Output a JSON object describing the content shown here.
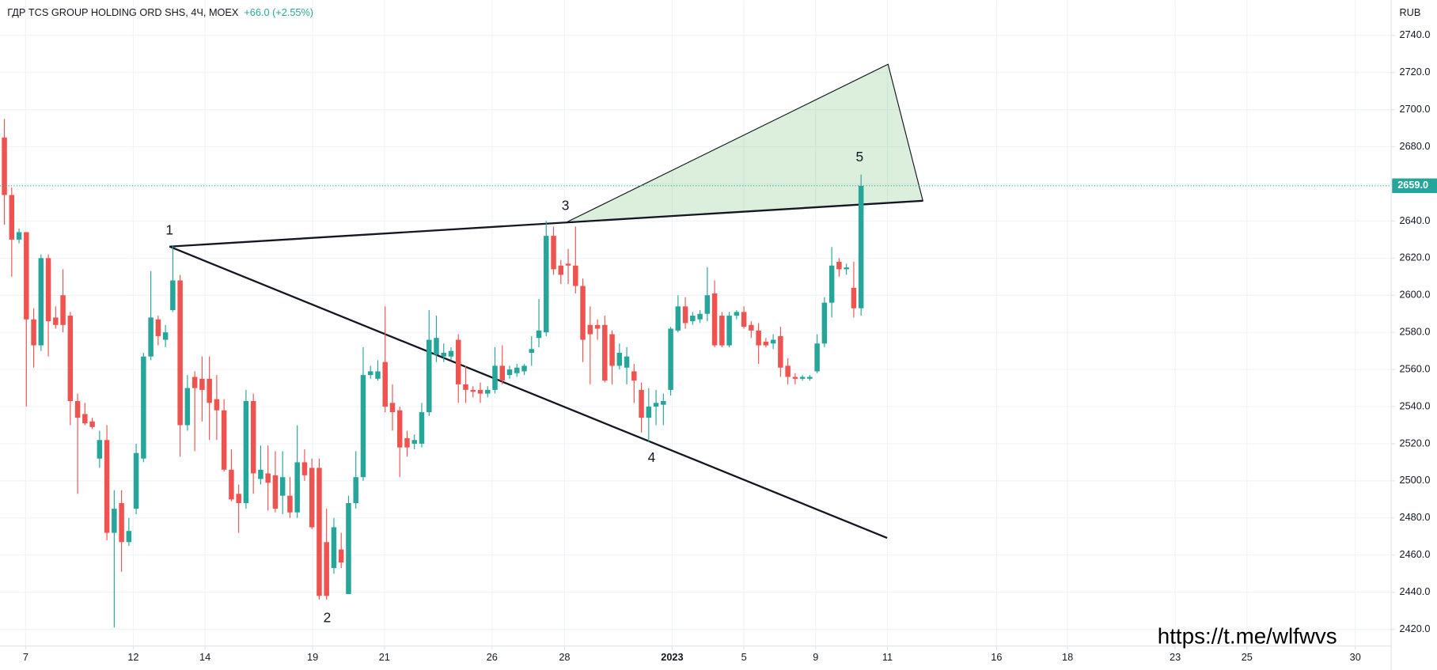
{
  "chart_data": {
    "type": "candlestick",
    "title": "ГДР TCS GROUP HOLDING ORD SHS, 4Ч, MOEX",
    "change": "+66.0 (+2.55%)",
    "currency": "RUB",
    "watermark": "https://t.me/wlfwvs",
    "annotations": [
      "1",
      "2",
      "3",
      "4",
      "5"
    ],
    "up_color": "#26a69a",
    "down_color": "#ef5350",
    "last_price": {
      "value": 2659,
      "label": "2659.0"
    },
    "open": [
      2685,
      2654,
      2630,
      2634,
      2587,
      2573,
      2620,
      2588,
      2600,
      2589,
      2543,
      2536,
      2532,
      2512,
      2522,
      2472,
      2488,
      2467,
      2485,
      2512,
      2567,
      2587,
      2576,
      2592,
      2608,
      2530,
      2556,
      2555,
      2555,
      2544,
      2538,
      2506,
      2493,
      2488,
      2543,
      2501,
      2504,
      2503,
      2492,
      2492,
      2483,
      2510,
      2507,
      2507,
      2467,
      2453,
      2463,
      2439,
      2488,
      2502,
      2557,
      2555,
      2564,
      2542,
      2538,
      2523,
      2520,
      2520,
      2537,
      2568,
      2567,
      2567,
      2576,
      2552,
      2549,
      2549,
      2547,
      2549,
      2562,
      2557,
      2558,
      2559,
      2569,
      2577,
      2580,
      2632,
      2616,
      2617,
      2616,
      2605,
      2584,
      2584,
      2584,
      2579,
      2562,
      2561,
      2559,
      2549,
      2534,
      2540,
      2541,
      2549,
      2581,
      2594,
      2586,
      2587,
      2590,
      2601,
      2589,
      2573,
      2589,
      2591,
      2584,
      2581,
      2575,
      2574,
      2578,
      2562,
      2556,
      2555,
      2555,
      2559,
      2574,
      2596,
      2618,
      2614,
      2604,
      2593
    ],
    "high": [
      2695,
      2658,
      2636,
      2634,
      2593,
      2622,
      2622,
      2594,
      2614,
      2591,
      2547,
      2542,
      2534,
      2527,
      2530,
      2495,
      2495,
      2480,
      2520,
      2569,
      2613,
      2589,
      2584,
      2627,
      2611,
      2557,
      2559,
      2567,
      2567,
      2557,
      2544,
      2517,
      2498,
      2549,
      2547,
      2519,
      2519,
      2516,
      2516,
      2502,
      2530,
      2517,
      2512,
      2512,
      2485,
      2480,
      2472,
      2492,
      2516,
      2572,
      2562,
      2565,
      2594,
      2552,
      2540,
      2527,
      2525,
      2542,
      2592,
      2589,
      2574,
      2572,
      2579,
      2562,
      2551,
      2553,
      2551,
      2572,
      2573,
      2562,
      2563,
      2563,
      2578,
      2598,
      2640,
      2637,
      2619,
      2625,
      2637,
      2609,
      2594,
      2587,
      2589,
      2581,
      2574,
      2572,
      2563,
      2553,
      2550,
      2549,
      2547,
      2583,
      2600,
      2599,
      2591,
      2592,
      2615,
      2608,
      2591,
      2591,
      2592,
      2594,
      2586,
      2585,
      2577,
      2579,
      2583,
      2566,
      2558,
      2557,
      2557,
      2579,
      2599,
      2626,
      2620,
      2617,
      2618,
      2665
    ],
    "low": [
      2638,
      2610,
      2628,
      2540,
      2561,
      2570,
      2567,
      2582,
      2580,
      2530,
      2493,
      2530,
      2528,
      2507,
      2468,
      2421,
      2451,
      2465,
      2482,
      2510,
      2565,
      2573,
      2572,
      2591,
      2513,
      2527,
      2516,
      2532,
      2522,
      2522,
      2505,
      2489,
      2472,
      2485,
      2493,
      2498,
      2484,
      2483,
      2482,
      2480,
      2480,
      2500,
      2474,
      2436,
      2436,
      2450,
      2453,
      2439,
      2485,
      2500,
      2555,
      2554,
      2537,
      2527,
      2502,
      2513,
      2517,
      2518,
      2535,
      2564,
      2564,
      2565,
      2542,
      2542,
      2545,
      2542,
      2545,
      2547,
      2552,
      2555,
      2556,
      2557,
      2562,
      2572,
      2578,
      2611,
      2606,
      2606,
      2601,
      2564,
      2552,
      2576,
      2553,
      2552,
      2560,
      2552,
      2542,
      2526,
      2521,
      2530,
      2530,
      2546,
      2580,
      2582,
      2584,
      2585,
      2586,
      2572,
      2572,
      2572,
      2587,
      2582,
      2577,
      2563,
      2572,
      2571,
      2556,
      2552,
      2552,
      2554,
      2554,
      2558,
      2572,
      2588,
      2610,
      2611,
      2588,
      2589
    ],
    "close": [
      2654,
      2630,
      2634,
      2587,
      2573,
      2620,
      2586,
      2584,
      2584,
      2543,
      2534,
      2531,
      2529,
      2522,
      2472,
      2485,
      2467,
      2473,
      2515,
      2567,
      2588,
      2578,
      2580,
      2608,
      2530,
      2550,
      2550,
      2549,
      2542,
      2538,
      2506,
      2490,
      2488,
      2543,
      2504,
      2506,
      2499,
      2485,
      2502,
      2483,
      2510,
      2503,
      2475,
      2438,
      2438,
      2475,
      2456,
      2488,
      2502,
      2557,
      2559,
      2559,
      2540,
      2537,
      2518,
      2518,
      2522,
      2537,
      2576,
      2577,
      2569,
      2570,
      2552,
      2549,
      2548,
      2547,
      2549,
      2562,
      2554,
      2560,
      2561,
      2562,
      2571,
      2581,
      2632,
      2614,
      2611,
      2616,
      2605,
      2576,
      2579,
      2582,
      2554,
      2562,
      2569,
      2567,
      2554,
      2534,
      2540,
      2542,
      2543,
      2582,
      2594,
      2585,
      2589,
      2590,
      2600,
      2573,
      2573,
      2589,
      2591,
      2583,
      2581,
      2573,
      2573,
      2576,
      2561,
      2556,
      2555,
      2556,
      2556,
      2574,
      2596,
      2616,
      2614,
      2615,
      2593,
      2659
    ],
    "xlim": [
      -0.6,
      189.4
    ],
    "ylim": [
      2411,
      2759
    ],
    "xticks": [
      {
        "value": 2.9,
        "label": "7"
      },
      {
        "value": 17.6,
        "label": "12"
      },
      {
        "value": 27.4,
        "label": "14"
      },
      {
        "value": 42.1,
        "label": "19"
      },
      {
        "value": 51.9,
        "label": "21"
      },
      {
        "value": 66.6,
        "label": "26"
      },
      {
        "value": 76.5,
        "label": "28"
      },
      {
        "value": 91.2,
        "label": "2023"
      },
      {
        "value": 101.0,
        "label": "5"
      },
      {
        "value": 110.8,
        "label": "9"
      },
      {
        "value": 120.6,
        "label": "11"
      },
      {
        "value": 135.5,
        "label": "16"
      },
      {
        "value": 145.2,
        "label": "18"
      },
      {
        "value": 159.9,
        "label": "23"
      },
      {
        "value": 169.7,
        "label": "25"
      },
      {
        "value": 184.5,
        "label": "30"
      }
    ],
    "yticks": [
      {
        "value": 2420,
        "label": "2420.0"
      },
      {
        "value": 2440,
        "label": "2440.0"
      },
      {
        "value": 2460,
        "label": "2460.0"
      },
      {
        "value": 2480,
        "label": "2480.0"
      },
      {
        "value": 2500,
        "label": "2500.0"
      },
      {
        "value": 2520,
        "label": "2520.0"
      },
      {
        "value": 2540,
        "label": "2540.0"
      },
      {
        "value": 2560,
        "label": "2560.0"
      },
      {
        "value": 2580,
        "label": "2580.0"
      },
      {
        "value": 2600,
        "label": "2600.0"
      },
      {
        "value": 2620,
        "label": "2620.0"
      },
      {
        "value": 2640,
        "label": "2640.0"
      },
      {
        "value": 2660,
        "label": "2660.0"
      },
      {
        "value": 2680,
        "label": "2680.0"
      },
      {
        "value": 2700,
        "label": "2700.0"
      },
      {
        "value": 2720,
        "label": "2720.0"
      },
      {
        "value": 2740,
        "label": "2740.0"
      }
    ],
    "grid": true
  }
}
